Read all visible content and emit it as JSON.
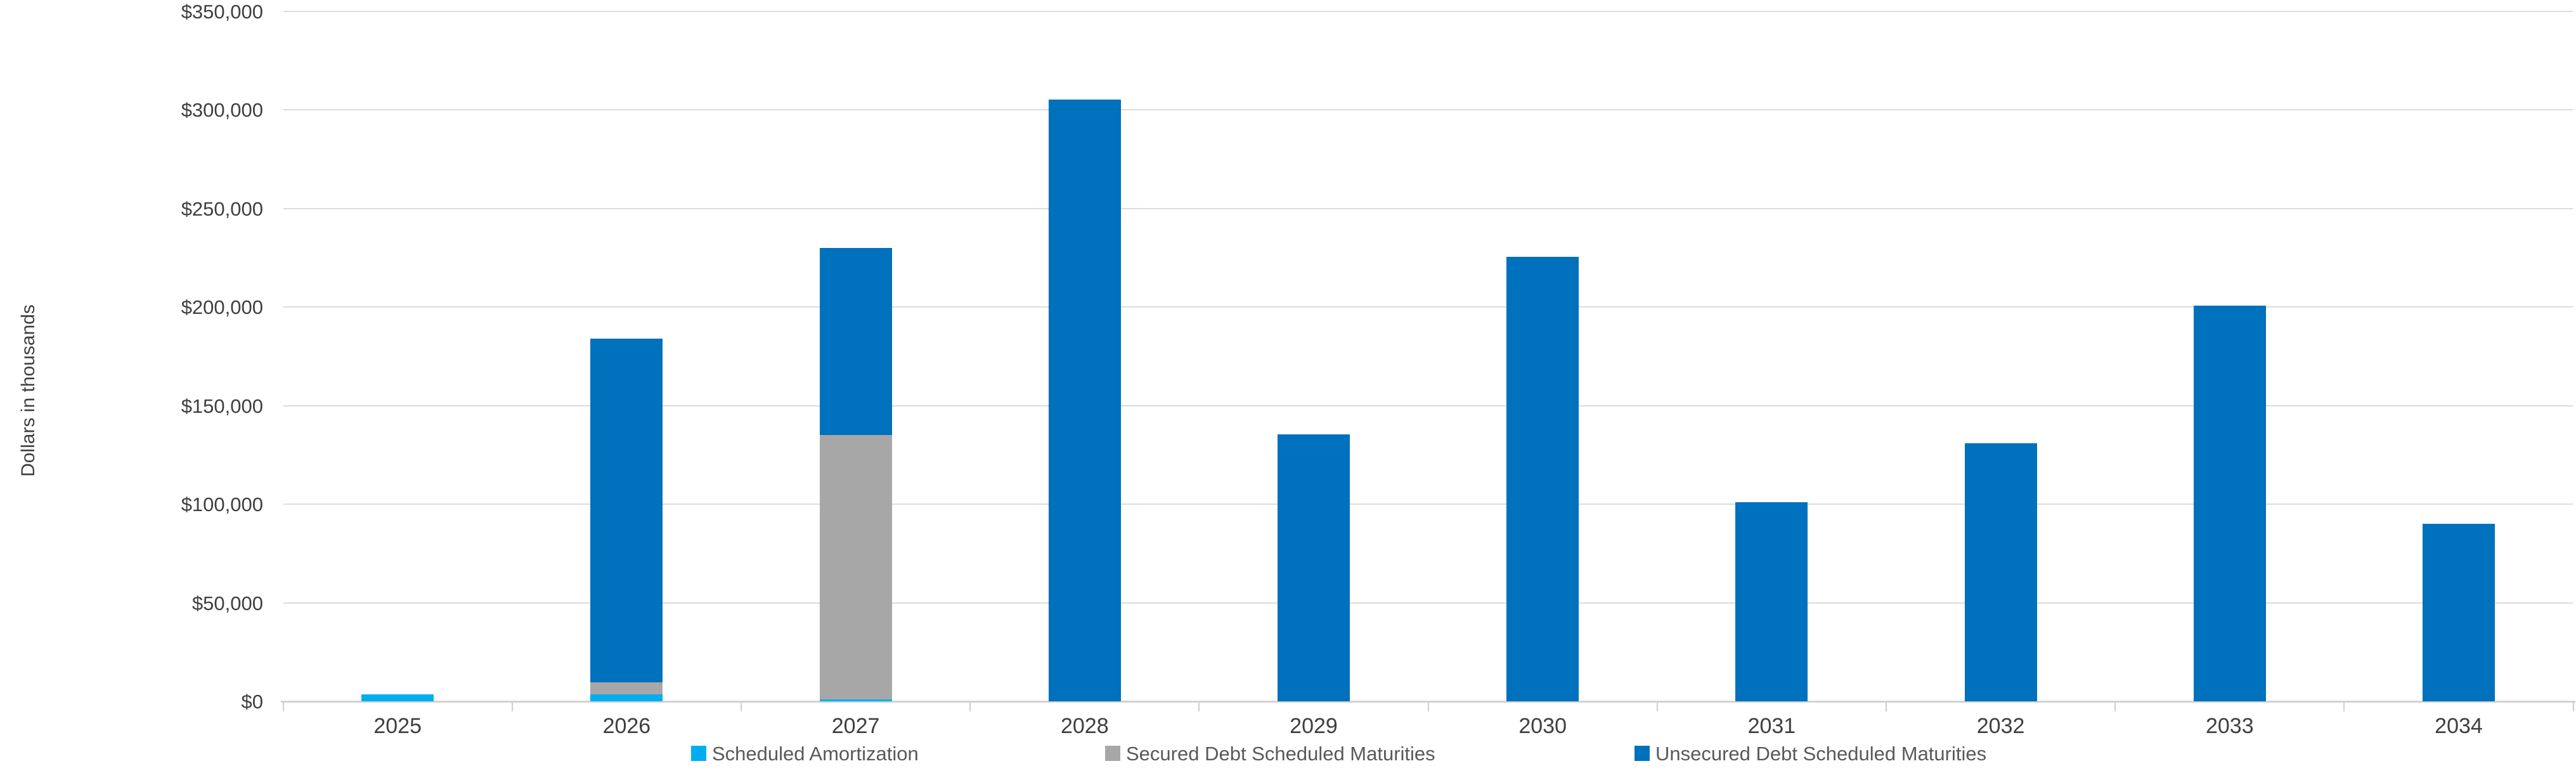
{
  "chart_data": {
    "type": "bar",
    "stacked": true,
    "title": "",
    "xlabel": "",
    "ylabel": "Dollars in thousands",
    "categories": [
      "2025",
      "2026",
      "2027",
      "2028",
      "2029",
      "2030",
      "2031",
      "2032",
      "2033",
      "2034"
    ],
    "series": [
      {
        "name": "Scheduled Amortization",
        "color": "#00AEEF",
        "values": [
          3500,
          3500,
          1000,
          0,
          0,
          0,
          0,
          0,
          0,
          0
        ]
      },
      {
        "name": "Secured Debt Scheduled Maturities",
        "color": "#A7A7A7",
        "values": [
          0,
          6000,
          134000,
          0,
          0,
          0,
          0,
          0,
          0,
          0
        ]
      },
      {
        "name": "Unsecured Debt Scheduled Maturities",
        "color": "#0071BC",
        "values": [
          0,
          174500,
          95000,
          305000,
          135500,
          225500,
          101000,
          131000,
          200500,
          90000
        ]
      }
    ],
    "totals": [
      3500,
      184000,
      230000,
      305000,
      135500,
      225500,
      101000,
      131000,
      200500,
      90000
    ],
    "ylim": [
      0,
      350000
    ],
    "ytick_step": 50000,
    "ytick_labels": [
      "$0",
      "$50,000",
      "$100,000",
      "$150,000",
      "$200,000",
      "$250,000",
      "$300,000",
      "$350,000"
    ],
    "grid": true,
    "legend_position": "bottom"
  },
  "colors": {
    "gridline": "#DCDCDC",
    "axis_line": "#D2D2D2",
    "tick": "#CFCFCF",
    "tick_label_text": "#3F3F3F",
    "legend_text": "#595959",
    "background": "#FFFFFF"
  }
}
